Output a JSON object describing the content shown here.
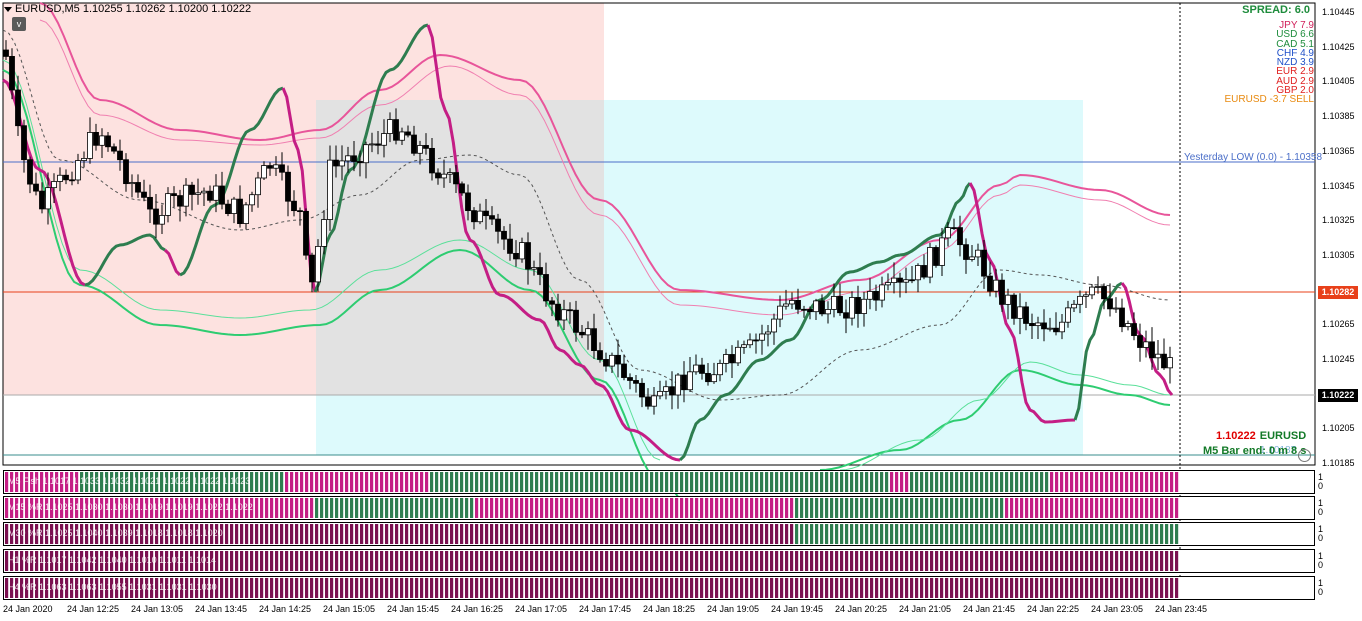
{
  "symbol_header": "EURUSD,M5  1.10255 1.10262 1.10200 1.10222",
  "collapse_glyph": "v",
  "spread_text": "SPREAD: 6.0",
  "currency_strength": [
    {
      "cur": "JPY",
      "val": "7.9",
      "color": "#d0205a"
    },
    {
      "cur": "USD",
      "val": "6.6",
      "color": "#1e8c3c"
    },
    {
      "cur": "CAD",
      "val": "5.1",
      "color": "#1e8c3c"
    },
    {
      "cur": "CHF",
      "val": "4.9",
      "color": "#2050c8"
    },
    {
      "cur": "NZD",
      "val": "3.9",
      "color": "#2050c8"
    },
    {
      "cur": "EUR",
      "val": "2.9",
      "color": "#e02020"
    },
    {
      "cur": "AUD",
      "val": "2.9",
      "color": "#e02020"
    },
    {
      "cur": "GBP",
      "val": "2.0",
      "color": "#e02020"
    }
  ],
  "pair_signal": "EURUSD -3.7 SELL",
  "pair_signal_color": "#e88a10",
  "yesterday_low": "Yesterday LOW (0.0) -  1.10358",
  "current_price": "1.10222",
  "current_symbol": "EURUSD",
  "bar_end": "M5 Bar end: 0 m 8 s",
  "bar_end_ghost": "1.10187",
  "price_tag_red": "1.10282",
  "price_tag_black": "1.10222",
  "y_ticks": [
    "1.10445",
    "1.10425",
    "1.10405",
    "1.10385",
    "1.10365",
    "1.10345",
    "1.10325",
    "1.10305",
    "1.10285",
    "1.10265",
    "1.10245",
    "1.10225",
    "1.10205",
    "1.10185"
  ],
  "x_ticks": [
    "24 Jan 2020",
    "24 Jan 12:25",
    "24 Jan 13:05",
    "24 Jan 13:45",
    "24 Jan 14:25",
    "24 Jan 15:05",
    "24 Jan 15:45",
    "24 Jan 16:25",
    "24 Jan 17:05",
    "24 Jan 17:45",
    "24 Jan 18:25",
    "24 Jan 19:05",
    "24 Jan 19:45",
    "24 Jan 20:25",
    "24 Jan 21:05",
    "24 Jan 21:45",
    "24 Jan 22:25",
    "24 Jan 23:05",
    "24 Jan 23:45"
  ],
  "panels": [
    {
      "label": "M5   Fish 1.1017 1.1033 1.1032 1.1021 1.1022 1.1022 1.1023"
    },
    {
      "label": "M15   %R 1.1025 1.1030 1.1030 1.1019 1.1019 1.1022 1.1022"
    },
    {
      "label": "M30   %R 1.1025 1.1040 1.1039 1.1018 1.1018 1.1020"
    },
    {
      "label": "H1   %R 1.1017 1.1042 1.1040 1.1010 1.1011 1.1014"
    },
    {
      "label": "H4   %R 1.1063 1.1063 1.1055 1.1031 1.1031 1.1030"
    }
  ],
  "panel_axis": [
    "1",
    "0"
  ],
  "colors": {
    "bull": "#2e7d4f",
    "bear": "#c41e85",
    "bear_dark": "#7a1050",
    "zone_pink": "#fde2e0",
    "zone_grey": "#e2e2e2",
    "zone_cyan": "#ddfafc"
  }
}
